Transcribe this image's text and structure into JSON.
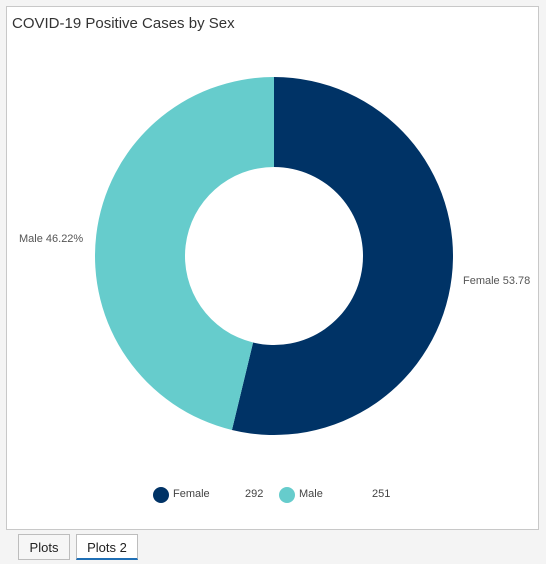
{
  "panel": {
    "title": "COVID-19 Positive Cases by Sex"
  },
  "chart_data": {
    "type": "pie",
    "donut": true,
    "title": "COVID-19 Positive Cases by Sex",
    "slices": [
      {
        "label": "Female",
        "value": 292,
        "percent_label": "Female 53.78",
        "color": "#003366"
      },
      {
        "label": "Male",
        "value": 251,
        "percent_label": "Male 46.22%",
        "color": "#66cccc"
      }
    ],
    "legend": {
      "position": "bottom",
      "items": [
        {
          "name": "Female",
          "value": "292",
          "color": "#003366"
        },
        {
          "name": "Male",
          "value": "251",
          "color": "#66cccc"
        }
      ]
    }
  },
  "tabs": [
    {
      "label": "Plots",
      "active": false
    },
    {
      "label": "Plots 2",
      "active": true
    }
  ]
}
